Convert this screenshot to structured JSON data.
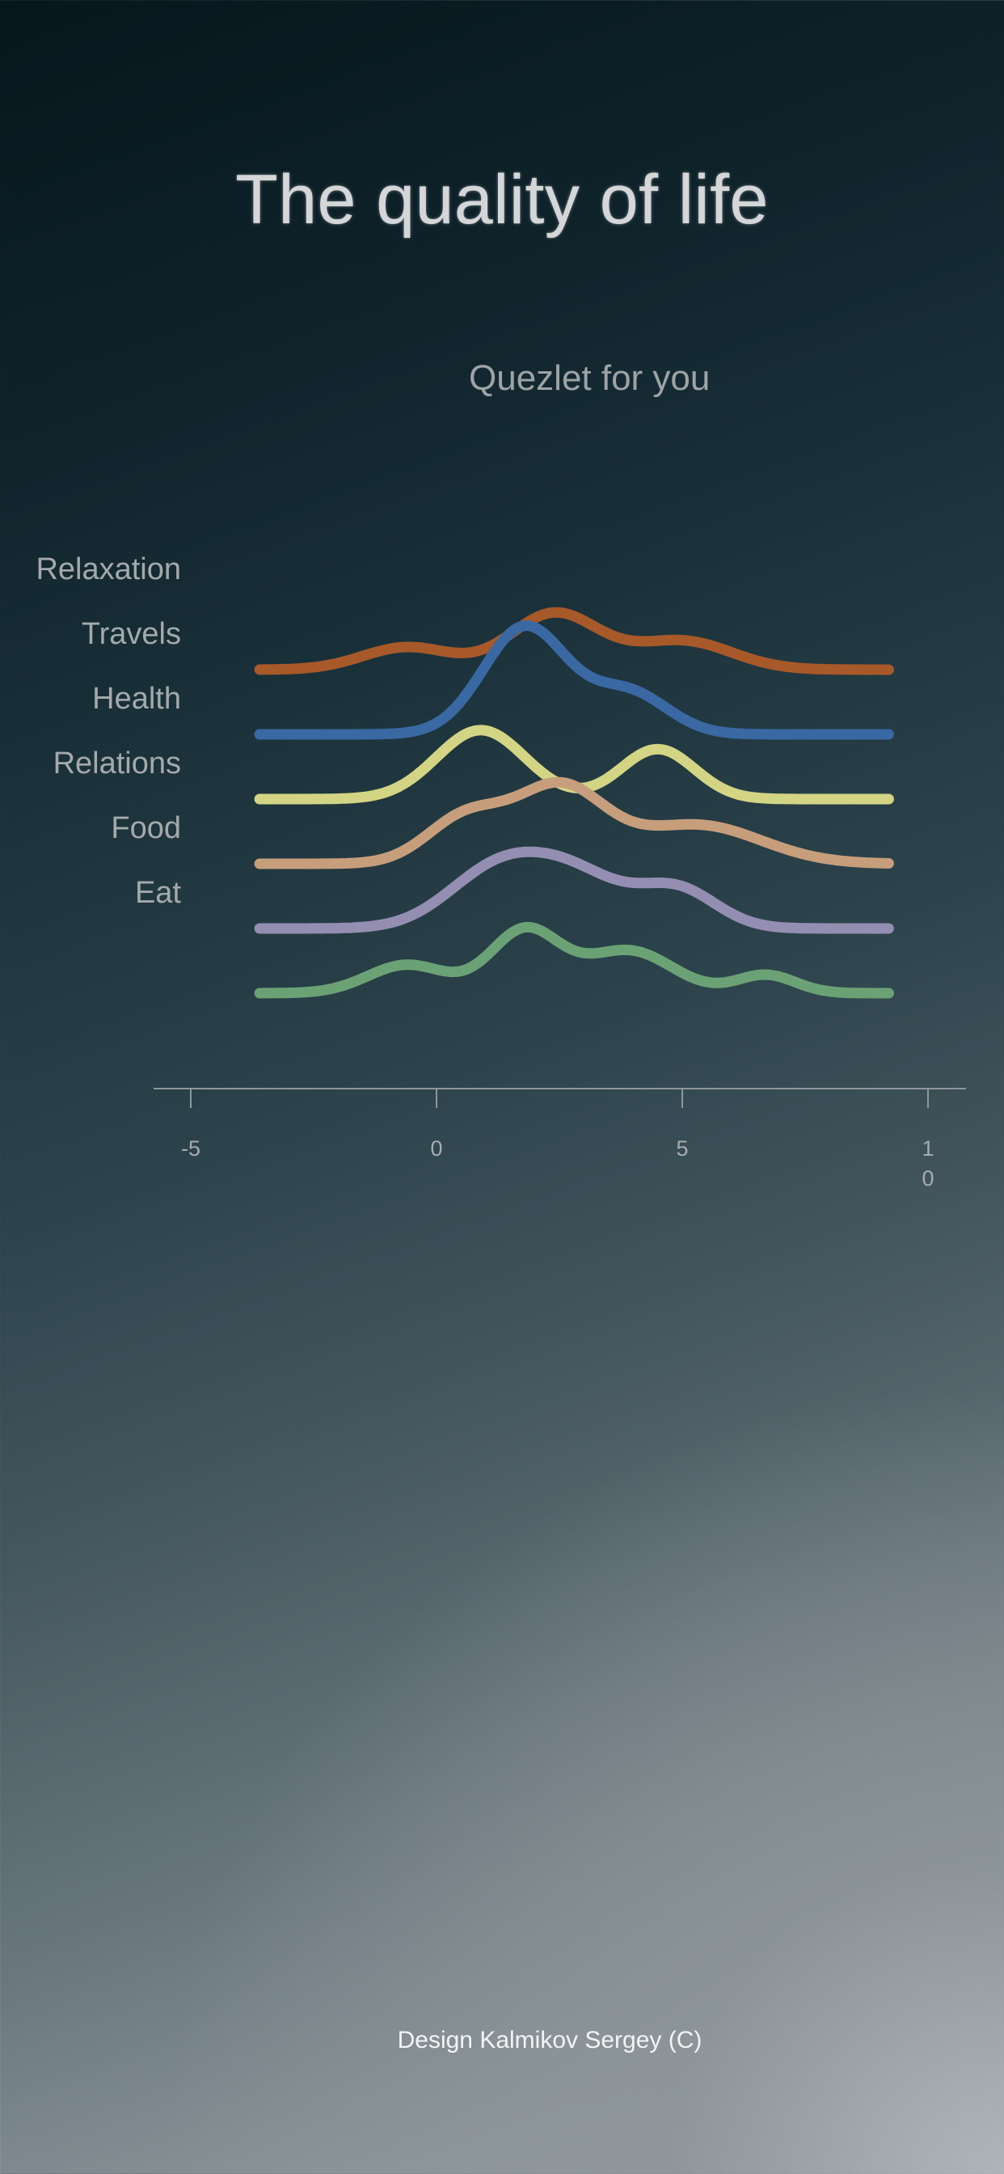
{
  "header": {
    "title": "The quality of life"
  },
  "chart_data": {
    "type": "ridgeline",
    "subtitle": "Quezlet for you",
    "x_ticks": [
      "-5",
      "0",
      "5",
      "10"
    ],
    "xlim": [
      -5,
      10
    ],
    "x_range_drawn": [
      -3.6,
      9.2
    ],
    "grid": false,
    "series": [
      {
        "name": "Relaxation",
        "color": "#a8592a",
        "peak_height": 0.59,
        "components": [
          {
            "mean": 2.4,
            "sd": 0.9,
            "weight": 0.55
          },
          {
            "mean": -0.6,
            "sd": 0.9,
            "weight": 0.22
          },
          {
            "mean": 5.0,
            "sd": 1.0,
            "weight": 0.28
          }
        ]
      },
      {
        "name": "Travels",
        "color": "#3a68a3",
        "peak_height": 1.12,
        "components": [
          {
            "mean": 1.8,
            "sd": 0.85,
            "weight": 0.72
          },
          {
            "mean": 3.9,
            "sd": 0.8,
            "weight": 0.28
          }
        ]
      },
      {
        "name": "Health",
        "color": "#d3d584",
        "peak_height": 0.71,
        "components": [
          {
            "mean": 0.9,
            "sd": 0.9,
            "weight": 0.58
          },
          {
            "mean": 4.5,
            "sd": 0.75,
            "weight": 0.42
          }
        ]
      },
      {
        "name": "Relations",
        "color": "#c69e7b",
        "peak_height": 0.84,
        "components": [
          {
            "mean": 0.6,
            "sd": 0.8,
            "weight": 0.38
          },
          {
            "mean": 2.5,
            "sd": 0.9,
            "weight": 0.62
          },
          {
            "mean": 5.3,
            "sd": 1.3,
            "weight": 0.32
          }
        ]
      },
      {
        "name": "Food",
        "color": "#958eb3",
        "peak_height": 0.79,
        "components": [
          {
            "mean": 1.2,
            "sd": 1.0,
            "weight": 0.55
          },
          {
            "mean": 2.8,
            "sd": 1.0,
            "weight": 0.5
          },
          {
            "mean": 4.9,
            "sd": 0.8,
            "weight": 0.38
          }
        ]
      },
      {
        "name": "Eat",
        "color": "#6ba275",
        "peak_height": 0.68,
        "components": [
          {
            "mean": -0.6,
            "sd": 0.8,
            "weight": 0.28
          },
          {
            "mean": 1.8,
            "sd": 0.7,
            "weight": 0.62
          },
          {
            "mean": 3.9,
            "sd": 0.9,
            "weight": 0.42
          },
          {
            "mean": 6.7,
            "sd": 0.6,
            "weight": 0.18
          }
        ]
      }
    ]
  },
  "footer": {
    "credit": "Design Kalmikov Sergey (C)"
  }
}
